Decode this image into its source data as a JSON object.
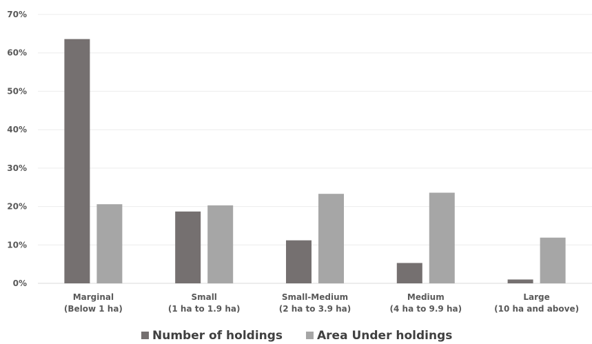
{
  "chart_data": {
    "type": "bar",
    "categories": [
      [
        "Marginal",
        "(Below 1 ha)"
      ],
      [
        "Small",
        "(1 ha to 1.9 ha)"
      ],
      [
        "Small-Medium",
        "(2 ha to 3.9 ha)"
      ],
      [
        "Medium",
        "(4 ha to 9.9 ha)"
      ],
      [
        "Large",
        "(10 ha and above)"
      ]
    ],
    "series": [
      {
        "name": "Number of holdings",
        "color": "#757070",
        "values": [
          63.6,
          18.7,
          11.2,
          5.3,
          1.0
        ]
      },
      {
        "name": "Area Under holdings",
        "color": "#A6A6A6",
        "values": [
          20.6,
          20.3,
          23.3,
          23.6,
          11.9
        ]
      }
    ],
    "y_ticks": [
      "0%",
      "10%",
      "20%",
      "30%",
      "40%",
      "50%",
      "60%",
      "70%"
    ],
    "ylim": [
      0,
      70
    ],
    "grid": true,
    "legend_position": "bottom"
  }
}
